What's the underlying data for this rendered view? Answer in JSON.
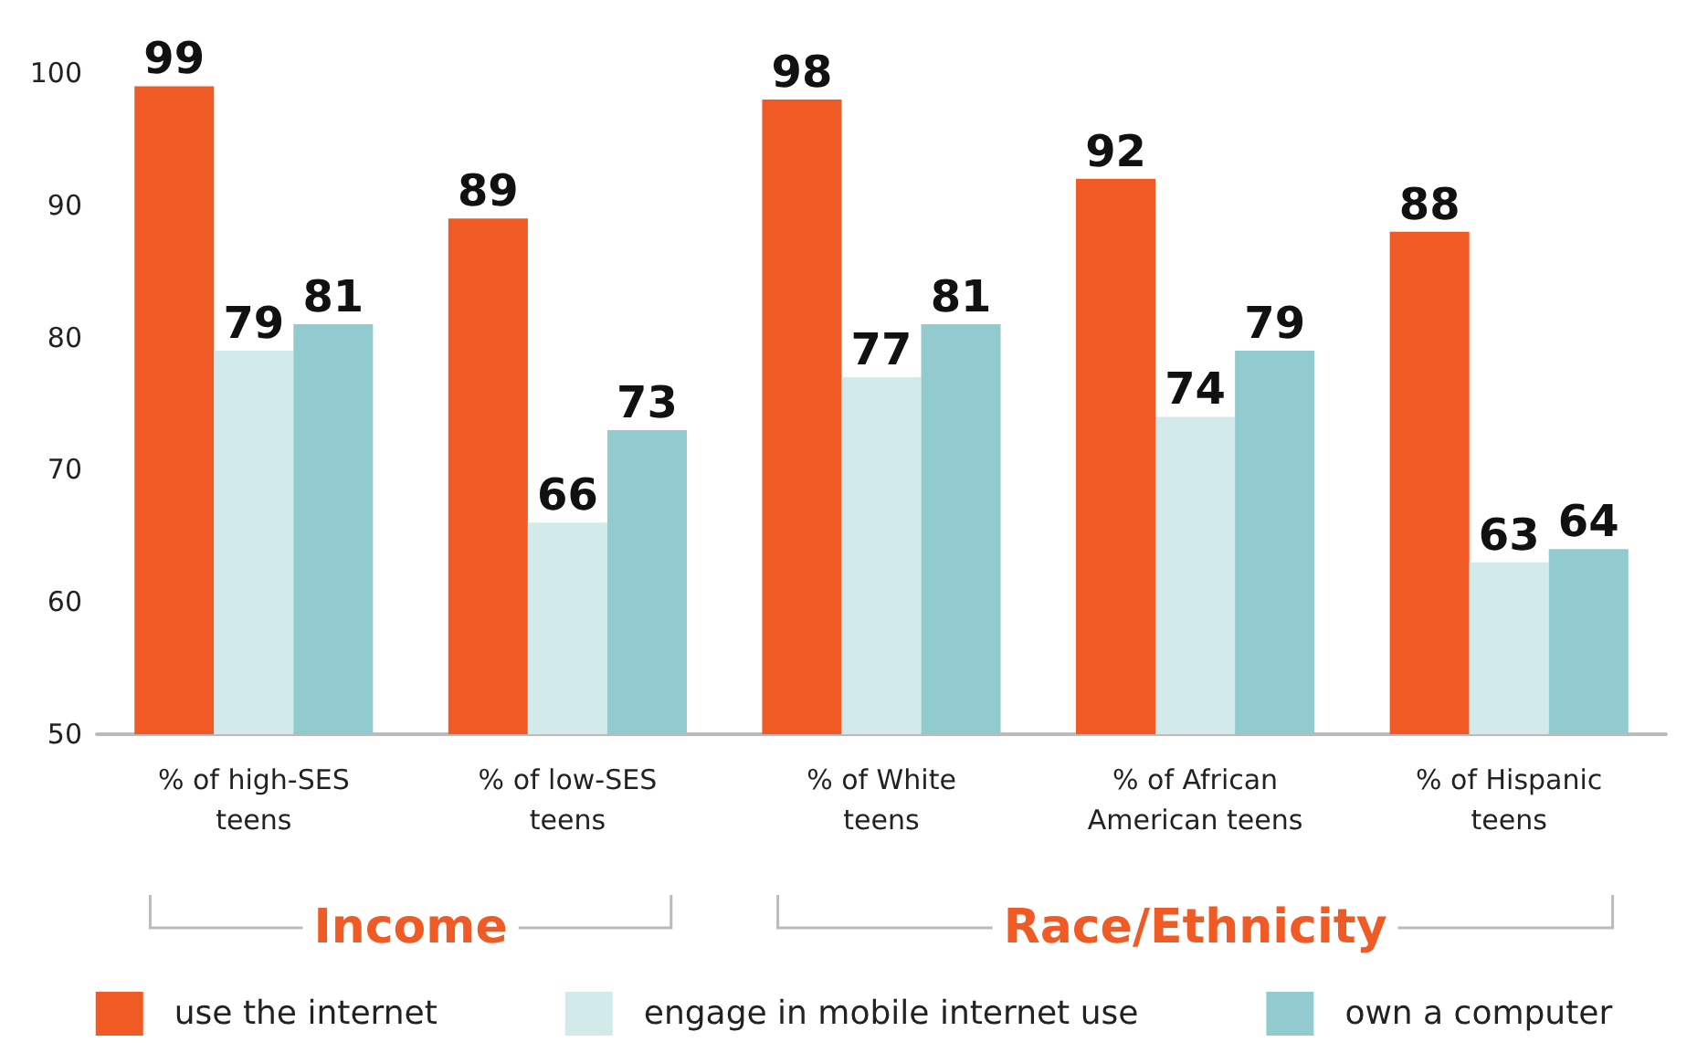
{
  "chart_data": {
    "type": "bar",
    "categories": [
      "% of high-SES\nteens",
      "% of low-SES\nteens",
      "% of White\nteens",
      "% of African\nAmerican teens",
      "% of Hispanic\nteens"
    ],
    "series": [
      {
        "name": "use the internet",
        "color": "#f05a24",
        "values": [
          99,
          89,
          98,
          92,
          88
        ]
      },
      {
        "name": "engage in mobile internet use",
        "color": "#d3eaeb",
        "values": [
          79,
          66,
          77,
          74,
          63
        ]
      },
      {
        "name": "own a computer",
        "color": "#92cbcf",
        "values": [
          81,
          73,
          81,
          79,
          64
        ]
      }
    ],
    "ylim": [
      50,
      100
    ],
    "yticks": [
      50,
      60,
      70,
      80,
      90,
      100
    ],
    "grid": false,
    "legend": "bottom",
    "data_labels": true,
    "annotations": [
      "Income",
      "Race/Ethnicity"
    ]
  }
}
